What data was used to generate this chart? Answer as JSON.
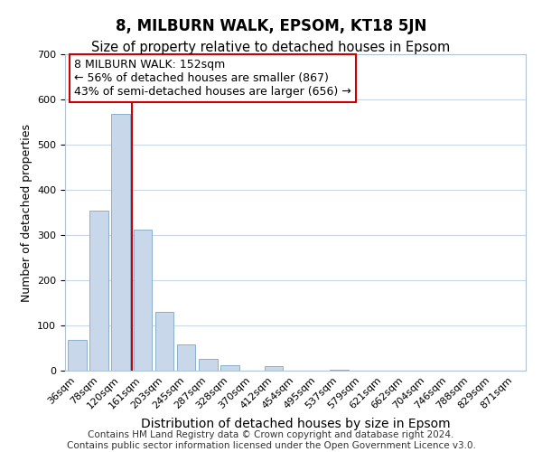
{
  "title": "8, MILBURN WALK, EPSOM, KT18 5JN",
  "subtitle": "Size of property relative to detached houses in Epsom",
  "xlabel": "Distribution of detached houses by size in Epsom",
  "ylabel": "Number of detached properties",
  "bar_labels": [
    "36sqm",
    "78sqm",
    "120sqm",
    "161sqm",
    "203sqm",
    "245sqm",
    "287sqm",
    "328sqm",
    "370sqm",
    "412sqm",
    "454sqm",
    "495sqm",
    "537sqm",
    "579sqm",
    "621sqm",
    "662sqm",
    "704sqm",
    "746sqm",
    "788sqm",
    "829sqm",
    "871sqm"
  ],
  "bar_values": [
    68,
    355,
    568,
    312,
    130,
    58,
    27,
    13,
    0,
    10,
    0,
    0,
    3,
    0,
    0,
    0,
    0,
    0,
    0,
    0,
    0
  ],
  "bar_color": "#c8d8ea",
  "bar_edge_color": "#8ab0cc",
  "vline_color": "#cc0000",
  "annotation_text": "8 MILBURN WALK: 152sqm\n← 56% of detached houses are smaller (867)\n43% of semi-detached houses are larger (656) →",
  "annotation_box_color": "#ffffff",
  "annotation_box_edge": "#cc0000",
  "ylim": [
    0,
    700
  ],
  "yticks": [
    0,
    100,
    200,
    300,
    400,
    500,
    600,
    700
  ],
  "footer_line1": "Contains HM Land Registry data © Crown copyright and database right 2024.",
  "footer_line2": "Contains public sector information licensed under the Open Government Licence v3.0.",
  "title_fontsize": 12,
  "subtitle_fontsize": 10.5,
  "xlabel_fontsize": 10,
  "ylabel_fontsize": 9,
  "tick_fontsize": 8,
  "annotation_fontsize": 9,
  "footer_fontsize": 7.5,
  "grid_color": "#c8d8e8"
}
